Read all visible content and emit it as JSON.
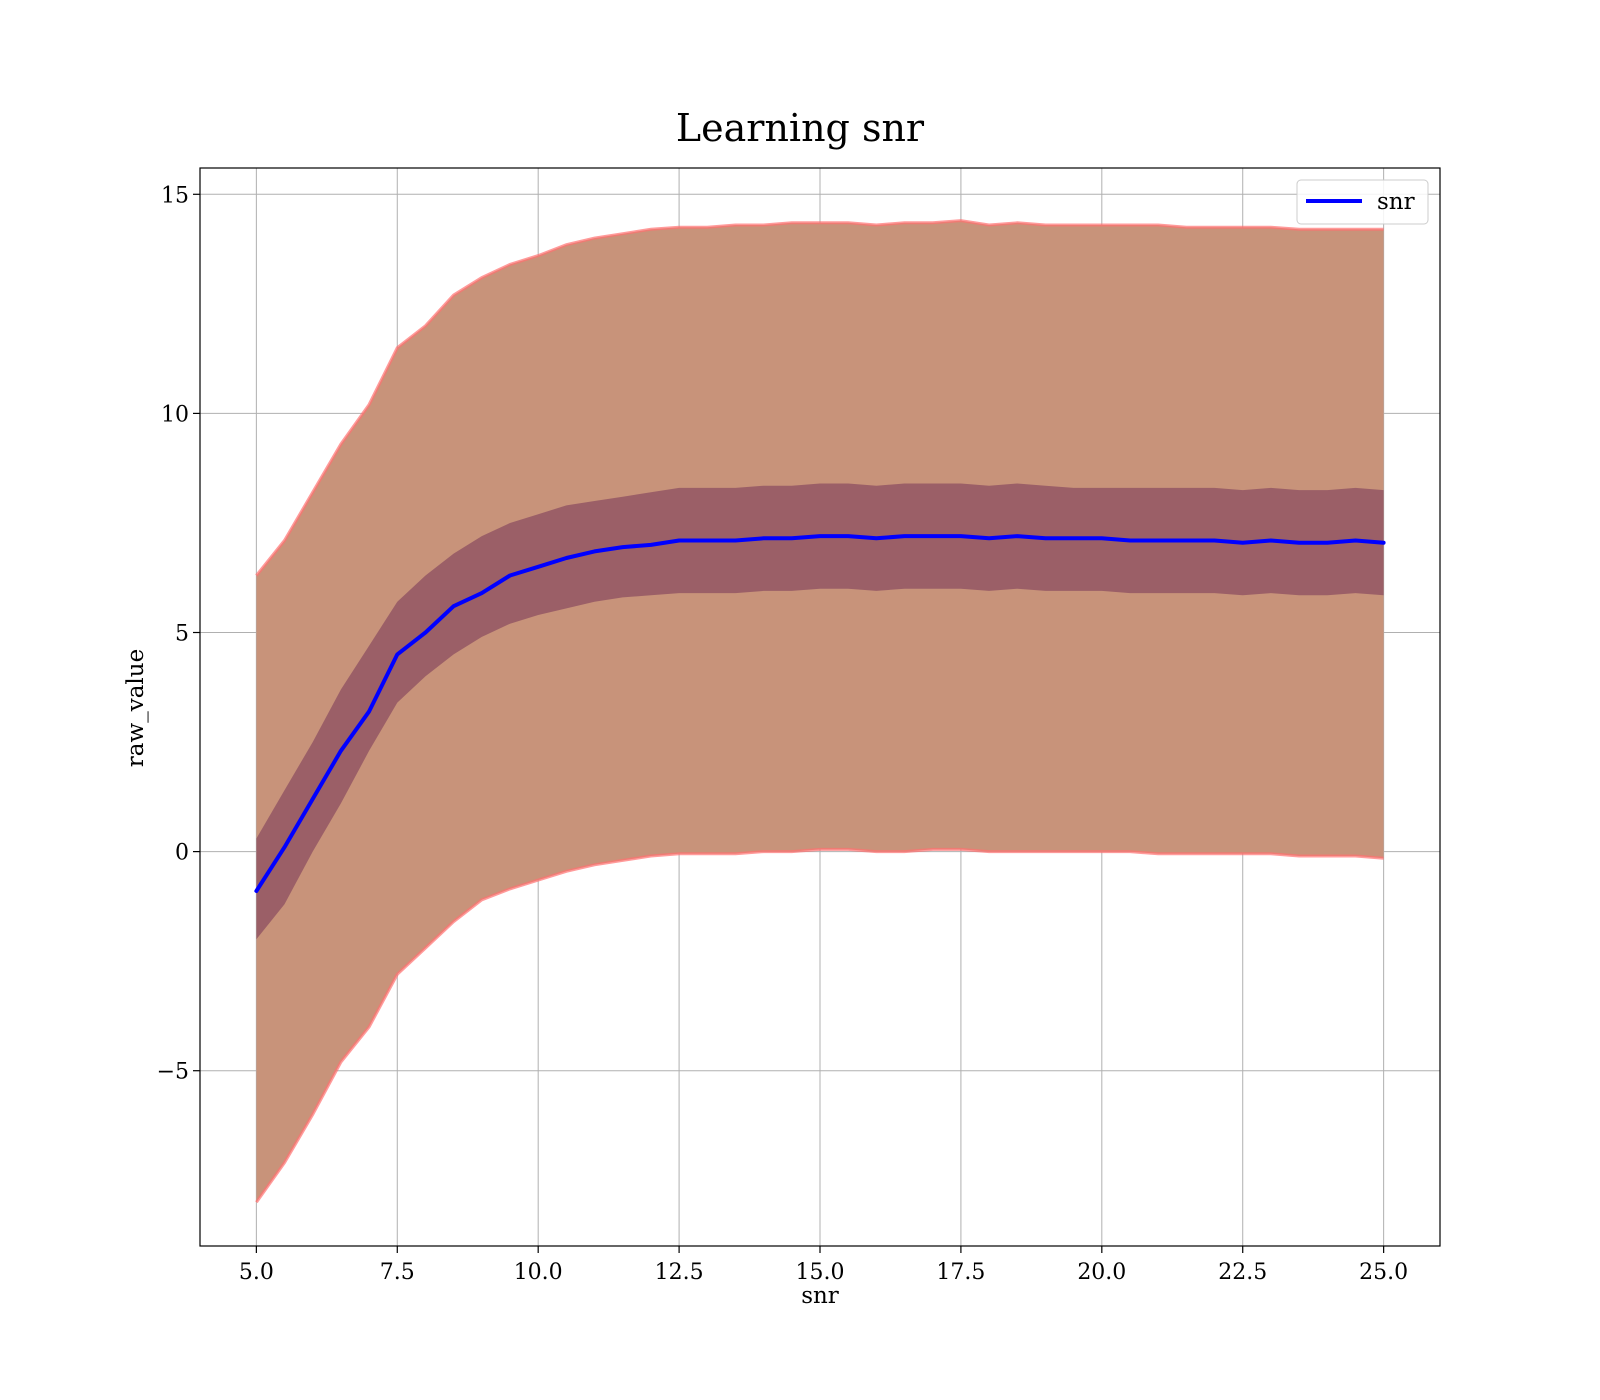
{
  "chart_data": {
    "type": "line",
    "title": "Learning snr",
    "xlabel": "snr",
    "ylabel": "raw_value",
    "xlim": [
      4.0,
      26.0
    ],
    "ylim": [
      -9.0,
      15.6
    ],
    "xticks": [
      "5.0",
      "7.5",
      "10.0",
      "12.5",
      "15.0",
      "17.5",
      "20.0",
      "22.5",
      "25.0"
    ],
    "yticks": [
      "−5",
      "0",
      "5",
      "10",
      "15"
    ],
    "grid": true,
    "legend_position": "top-right",
    "x": [
      5.0,
      5.5,
      6.0,
      6.5,
      7.0,
      7.5,
      8.0,
      8.5,
      9.0,
      9.5,
      10.0,
      10.5,
      11.0,
      11.5,
      12.0,
      12.5,
      13.0,
      13.5,
      14.0,
      14.5,
      15.0,
      15.5,
      16.0,
      16.5,
      17.0,
      17.5,
      18.0,
      18.5,
      19.0,
      19.5,
      20.0,
      20.5,
      21.0,
      21.5,
      22.0,
      22.5,
      23.0,
      23.5,
      24.0,
      24.5,
      25.0
    ],
    "series": [
      {
        "name": "snr",
        "color": "#0000ff",
        "values": [
          -0.9,
          0.1,
          1.2,
          2.3,
          3.2,
          4.5,
          5.0,
          5.6,
          5.9,
          6.3,
          6.5,
          6.7,
          6.85,
          6.95,
          7.0,
          7.1,
          7.1,
          7.1,
          7.15,
          7.15,
          7.2,
          7.2,
          7.15,
          7.2,
          7.2,
          7.2,
          7.15,
          7.2,
          7.15,
          7.15,
          7.15,
          7.1,
          7.1,
          7.1,
          7.1,
          7.05,
          7.1,
          7.05,
          7.05,
          7.1,
          7.05
        ]
      }
    ],
    "inner_band": {
      "color": "#7d3c5a",
      "upper": [
        0.3,
        1.4,
        2.5,
        3.7,
        4.7,
        5.7,
        6.3,
        6.8,
        7.2,
        7.5,
        7.7,
        7.9,
        8.0,
        8.1,
        8.2,
        8.3,
        8.3,
        8.3,
        8.35,
        8.35,
        8.4,
        8.4,
        8.35,
        8.4,
        8.4,
        8.4,
        8.35,
        8.4,
        8.35,
        8.3,
        8.3,
        8.3,
        8.3,
        8.3,
        8.3,
        8.25,
        8.3,
        8.25,
        8.25,
        8.3,
        8.25
      ],
      "lower": [
        -2.0,
        -1.2,
        0.0,
        1.1,
        2.3,
        3.4,
        4.0,
        4.5,
        4.9,
        5.2,
        5.4,
        5.55,
        5.7,
        5.8,
        5.85,
        5.9,
        5.9,
        5.9,
        5.95,
        5.95,
        6.0,
        6.0,
        5.95,
        6.0,
        6.0,
        6.0,
        5.95,
        6.0,
        5.95,
        5.95,
        5.95,
        5.9,
        5.9,
        5.9,
        5.9,
        5.85,
        5.9,
        5.85,
        5.85,
        5.9,
        5.85
      ]
    },
    "outer_band": {
      "color": "#c8937a",
      "edge_color": "#ff7070",
      "upper": [
        6.3,
        7.1,
        8.2,
        9.3,
        10.2,
        11.5,
        12.0,
        12.7,
        13.1,
        13.4,
        13.6,
        13.85,
        14.0,
        14.1,
        14.2,
        14.25,
        14.25,
        14.3,
        14.3,
        14.35,
        14.35,
        14.35,
        14.3,
        14.35,
        14.35,
        14.4,
        14.3,
        14.35,
        14.3,
        14.3,
        14.3,
        14.3,
        14.3,
        14.25,
        14.25,
        14.25,
        14.25,
        14.2,
        14.2,
        14.2,
        14.2
      ],
      "lower": [
        -8.0,
        -7.1,
        -6.0,
        -4.8,
        -4.0,
        -2.8,
        -2.2,
        -1.6,
        -1.1,
        -0.85,
        -0.65,
        -0.45,
        -0.3,
        -0.2,
        -0.1,
        -0.05,
        -0.05,
        -0.05,
        0.0,
        0.0,
        0.05,
        0.05,
        0.0,
        0.0,
        0.05,
        0.05,
        0.0,
        0.0,
        0.0,
        0.0,
        0.0,
        0.0,
        -0.05,
        -0.05,
        -0.05,
        -0.05,
        -0.05,
        -0.1,
        -0.1,
        -0.1,
        -0.15
      ]
    }
  }
}
